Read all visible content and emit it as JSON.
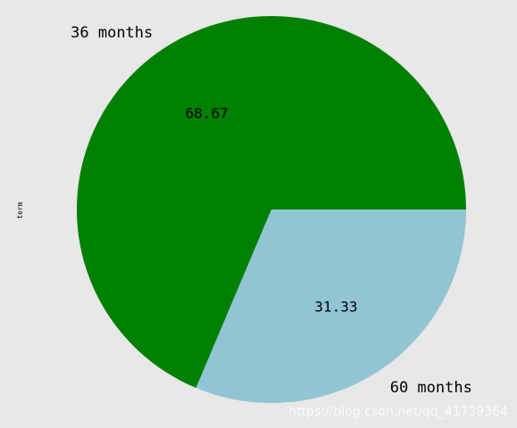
{
  "chart_data": {
    "type": "pie",
    "ylabel": "term",
    "labels": [
      "36 months",
      "60 months"
    ],
    "values": [
      68.67,
      31.33
    ],
    "value_labels": [
      "68.67",
      "31.33"
    ],
    "colors": [
      "#008000",
      "#92c5d3"
    ],
    "start_angle_deg": 0,
    "counterclockwise": true,
    "background": "#e8e8e8"
  },
  "watermark": "https://blog.csdn.net/qq_41739364"
}
